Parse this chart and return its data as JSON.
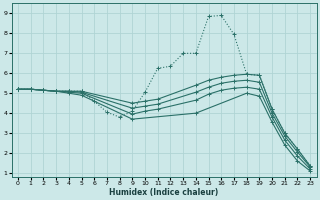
{
  "xlabel": "Humidex (Indice chaleur)",
  "xlim": [
    -0.5,
    23.5
  ],
  "ylim": [
    0.8,
    9.5
  ],
  "yticks": [
    1,
    2,
    3,
    4,
    5,
    6,
    7,
    8,
    9
  ],
  "xticks": [
    0,
    1,
    2,
    3,
    4,
    5,
    6,
    7,
    8,
    9,
    10,
    11,
    12,
    13,
    14,
    15,
    16,
    17,
    18,
    19,
    20,
    21,
    22,
    23
  ],
  "background_color": "#cce8e8",
  "grid_color": "#b0d4d4",
  "line_color": "#2a7068",
  "curves": [
    {
      "x": [
        0,
        1,
        2,
        3,
        4,
        5,
        6,
        7,
        8,
        9,
        10,
        11,
        12,
        13,
        14,
        15,
        16,
        17,
        18,
        19,
        20,
        21,
        22,
        23
      ],
      "y": [
        5.2,
        5.2,
        5.15,
        5.1,
        5.1,
        5.1,
        4.6,
        4.05,
        3.8,
        4.1,
        5.05,
        6.25,
        6.35,
        7.0,
        7.0,
        8.85,
        8.9,
        7.95,
        5.95,
        5.9,
        4.2,
        3.0,
        2.2,
        1.35
      ],
      "style": "dotted"
    },
    {
      "x": [
        0,
        1,
        2,
        3,
        4,
        5,
        9,
        10,
        11,
        14,
        15,
        16,
        17,
        18,
        19,
        20,
        21,
        22,
        23
      ],
      "y": [
        5.2,
        5.2,
        5.15,
        5.1,
        5.1,
        5.1,
        4.5,
        4.6,
        4.7,
        5.4,
        5.65,
        5.8,
        5.9,
        5.95,
        5.9,
        4.2,
        3.0,
        2.2,
        1.35
      ],
      "style": "solid"
    },
    {
      "x": [
        0,
        1,
        2,
        3,
        4,
        5,
        9,
        10,
        11,
        14,
        15,
        16,
        17,
        18,
        19,
        20,
        21,
        22,
        23
      ],
      "y": [
        5.2,
        5.2,
        5.15,
        5.1,
        5.1,
        5.05,
        4.25,
        4.35,
        4.45,
        5.05,
        5.3,
        5.5,
        5.6,
        5.65,
        5.55,
        4.0,
        2.85,
        2.05,
        1.3
      ],
      "style": "solid"
    },
    {
      "x": [
        0,
        1,
        2,
        3,
        4,
        5,
        9,
        10,
        11,
        14,
        15,
        16,
        17,
        18,
        19,
        20,
        21,
        22,
        23
      ],
      "y": [
        5.2,
        5.2,
        5.15,
        5.1,
        5.05,
        5.0,
        3.95,
        4.1,
        4.2,
        4.65,
        4.95,
        5.15,
        5.25,
        5.3,
        5.2,
        3.8,
        2.65,
        1.85,
        1.2
      ],
      "style": "solid"
    },
    {
      "x": [
        0,
        1,
        2,
        3,
        4,
        5,
        9,
        14,
        18,
        19,
        20,
        21,
        22,
        23
      ],
      "y": [
        5.2,
        5.2,
        5.15,
        5.1,
        5.0,
        4.9,
        3.7,
        4.0,
        5.0,
        4.85,
        3.55,
        2.4,
        1.6,
        1.1
      ],
      "style": "solid"
    }
  ]
}
